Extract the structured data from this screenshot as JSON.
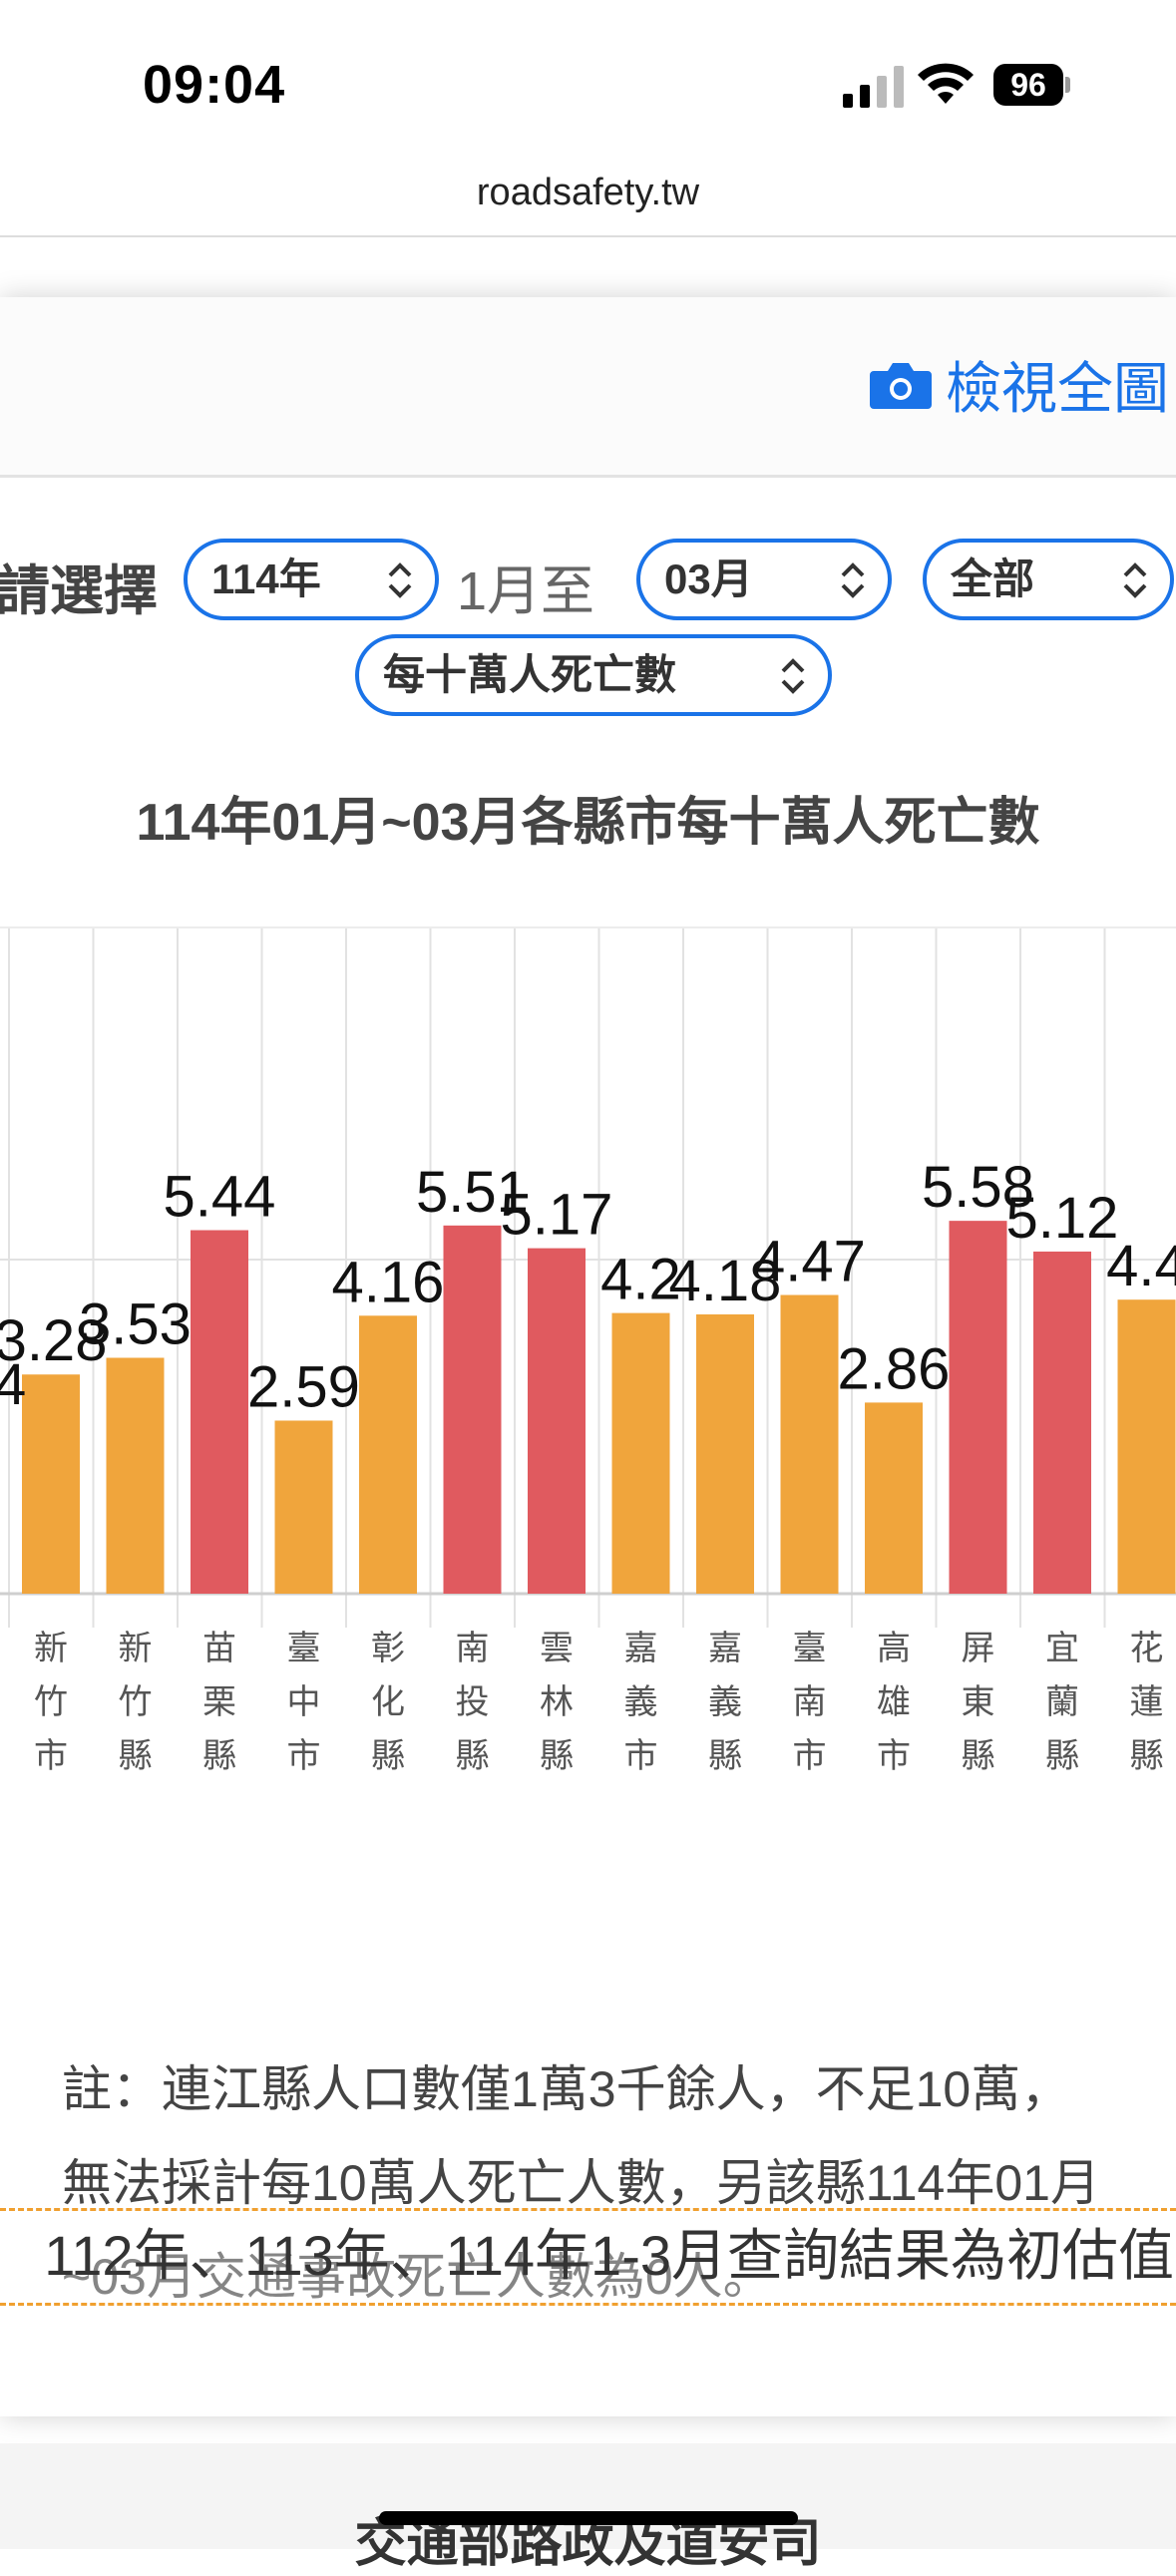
{
  "status": {
    "time": "09:04",
    "battery": "96"
  },
  "browser": {
    "url": "roadsafety.tw"
  },
  "header": {
    "view_all": "檢視全圖"
  },
  "filters": {
    "label": "請選擇",
    "year": "114年",
    "from_text": "1月至",
    "month": "03月",
    "scope": "全部",
    "metric": "每十萬人死亡數"
  },
  "chart_data": {
    "type": "bar",
    "title": "114年01月~03月各縣市每十萬人死亡數",
    "categories": [
      "新竹市",
      "新竹縣",
      "苗栗縣",
      "臺中市",
      "彰化縣",
      "南投縣",
      "雲林縣",
      "嘉義市",
      "嘉義縣",
      "臺南市",
      "高雄市",
      "屏東縣",
      "宜蘭縣",
      "花蓮縣"
    ],
    "values": [
      3.28,
      3.53,
      5.44,
      2.59,
      4.16,
      5.51,
      5.17,
      4.2,
      4.18,
      4.47,
      2.86,
      5.58,
      5.12,
      4.4
    ],
    "labels": [
      "3.28",
      "3.53",
      "5.44",
      "2.59",
      "4.16",
      "5.51",
      "5.17",
      "4.2",
      "4.18",
      "4.47",
      "2.86",
      "5.58",
      "5.12",
      "4.4"
    ],
    "colors": {
      "high": "#e05a5f",
      "normal": "#f0a53c"
    },
    "high_threshold": 5,
    "partial_left_label": "4",
    "grid": true
  },
  "note": {
    "text": "註：連江縣人口數僅1萬3千餘人，不足10萬，無法採計每10萬人死亡人數，另該縣114年01月~03月交通事故死亡人數為0人。"
  },
  "overlay": {
    "text": "112年、113年、114年1-3月查詢結果為初估值"
  },
  "footer": {
    "text": "交通部路政及道安司"
  }
}
